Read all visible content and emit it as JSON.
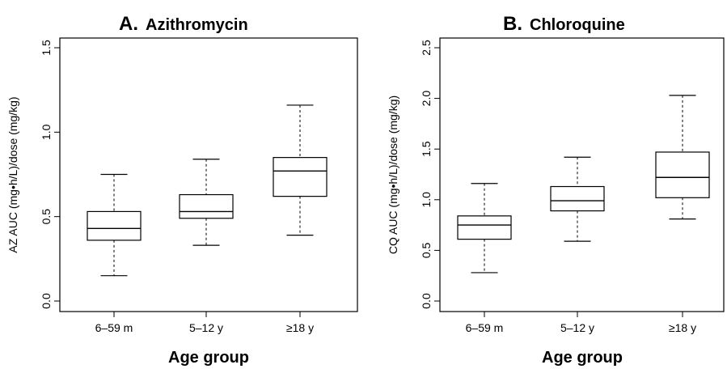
{
  "chart_data": [
    {
      "type": "boxplot",
      "title_letter": "A.",
      "title": "Azithromycin",
      "xlabel": "Age group",
      "ylabel": "AZ AUC (mg•h/L)/dose (mg/kg)",
      "ylim": [
        0,
        1.5
      ],
      "yticks": [
        "0.0",
        "0.5",
        "1.0",
        "1.5"
      ],
      "ytick_values": [
        0,
        0.5,
        1.0,
        1.5
      ],
      "categories": [
        "6–59 m",
        "5–12 y",
        "≥18 y"
      ],
      "boxes": [
        {
          "min": 0.15,
          "q1": 0.36,
          "median": 0.43,
          "q3": 0.53,
          "max": 0.75
        },
        {
          "min": 0.33,
          "q1": 0.49,
          "median": 0.53,
          "q3": 0.63,
          "max": 0.84
        },
        {
          "min": 0.39,
          "q1": 0.62,
          "median": 0.77,
          "q3": 0.85,
          "max": 1.16
        }
      ]
    },
    {
      "type": "boxplot",
      "title_letter": "B.",
      "title": "Chloroquine",
      "xlabel": "Age group",
      "ylabel": "CQ AUC (mg•h/L)/dose (mg/kg)",
      "ylim": [
        0,
        2.5
      ],
      "yticks": [
        "0.0",
        "0.5",
        "1.0",
        "1.5",
        "2.0",
        "2.5"
      ],
      "ytick_values": [
        0,
        0.5,
        1.0,
        1.5,
        2.0,
        2.5
      ],
      "categories": [
        "6–59 m",
        "5–12 y",
        "≥18 y"
      ],
      "boxes": [
        {
          "min": 0.28,
          "q1": 0.61,
          "median": 0.75,
          "q3": 0.84,
          "max": 1.16
        },
        {
          "min": 0.59,
          "q1": 0.89,
          "median": 0.99,
          "q3": 1.13,
          "max": 1.42
        },
        {
          "min": 0.81,
          "q1": 1.02,
          "median": 1.22,
          "q3": 1.47,
          "max": 2.03
        }
      ]
    }
  ]
}
